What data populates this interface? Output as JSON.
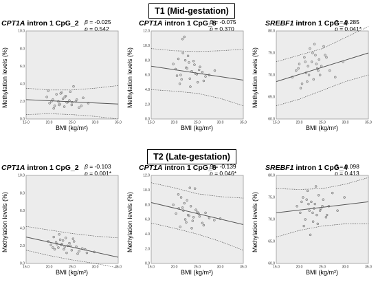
{
  "sections": [
    {
      "title": "T1  (Mid-gestation)"
    },
    {
      "title": "T2  (Late-gestation)"
    }
  ],
  "xlabel": "BMI (kg/m²)",
  "ylabel": "Methylation levels (%)",
  "stats_prefix": {
    "beta": "β",
    "p": "p"
  },
  "panels": [
    {
      "gene": "CPT1A",
      "rest": " intron 1 CpG_2",
      "beta": "= -0.025",
      "p": "= 0.542"
    },
    {
      "gene": "CPT1A",
      "rest": " intron 1 CpG_8",
      "beta": "= -0.075",
      "p": "= 0.370"
    },
    {
      "gene": "SREBF1",
      "rest": " intron 1 CpG_4",
      "beta": "= 0.285",
      "p": "= 0.041*"
    },
    {
      "gene": "CPT1A",
      "rest": " intron 1 CpG_2",
      "beta": "= -0.103",
      "p": "= 0.001*"
    },
    {
      "gene": "CPT1A",
      "rest": " intron 1 CpG_8",
      "beta": "= -0.139",
      "p": "= 0.046*"
    },
    {
      "gene": "SREBF1",
      "rest": " intron 1 CpG_4",
      "beta": "= 0.098",
      "p": "= 0.413"
    }
  ],
  "chart_data": [
    {
      "type": "scatter",
      "title": "CPT1A intron 1 CpG_2 (T1)",
      "xlabel": "BMI (kg/m²)",
      "ylabel": "Methylation levels (%)",
      "xlim": [
        15,
        35
      ],
      "ylim": [
        0,
        10
      ],
      "xticks": [
        "15.0",
        "20.0",
        "25.0",
        "30.0",
        "35.0"
      ],
      "yticks": [
        "0.0",
        "2.0",
        "4.0",
        "6.0",
        "8.0",
        "10.0"
      ],
      "fit": {
        "x": [
          15,
          35
        ],
        "y": [
          2.2,
          1.7
        ]
      },
      "ci_upper": {
        "x": [
          15,
          20,
          25,
          30,
          35
        ],
        "y": [
          3.5,
          3.3,
          3.3,
          3.5,
          3.8
        ]
      },
      "ci_lower": {
        "x": [
          15,
          20,
          25,
          30,
          35
        ],
        "y": [
          0.5,
          0.6,
          0.5,
          0.3,
          0.0
        ]
      },
      "points": {
        "x": [
          19.5,
          20.1,
          20.8,
          21.2,
          21.6,
          22.0,
          22.3,
          22.7,
          23.0,
          23.3,
          23.6,
          24.0,
          24.4,
          24.9,
          25.3,
          25.8,
          26.5,
          27.4,
          28.5,
          19.8,
          21.0,
          22.5,
          23.8,
          24.6,
          26.0,
          20.5,
          22.2,
          23.4,
          25.0,
          27.0
        ],
        "y": [
          2.5,
          1.8,
          2.2,
          1.5,
          2.8,
          2.0,
          1.7,
          3.0,
          2.3,
          1.4,
          2.6,
          1.9,
          2.1,
          1.6,
          3.7,
          2.0,
          1.3,
          2.4,
          1.8,
          3.2,
          1.2,
          2.9,
          1.9,
          3.1,
          2.2,
          2.0,
          1.6,
          2.5,
          1.9,
          1.5
        ]
      }
    },
    {
      "type": "scatter",
      "title": "CPT1A intron 1 CpG_8 (T1)",
      "xlabel": "BMI (kg/m²)",
      "ylabel": "Methylation levels (%)",
      "xlim": [
        15,
        35
      ],
      "ylim": [
        0,
        12
      ],
      "xticks": [
        "15.0",
        "20.0",
        "25.0",
        "30.0",
        "35.0"
      ],
      "yticks": [
        "0.0",
        "2.0",
        "4.0",
        "6.0",
        "8.0",
        "10.0",
        "12.0"
      ],
      "fit": {
        "x": [
          15,
          35
        ],
        "y": [
          7.2,
          5.3
        ]
      },
      "ci_upper": {
        "x": [
          15,
          20,
          25,
          30,
          35
        ],
        "y": [
          9.6,
          9.3,
          9.2,
          9.3,
          9.5
        ]
      },
      "ci_lower": {
        "x": [
          15,
          20,
          25,
          30,
          35
        ],
        "y": [
          4.0,
          3.8,
          3.5,
          2.8,
          1.8
        ]
      },
      "points": {
        "x": [
          19.8,
          20.3,
          20.9,
          21.4,
          21.8,
          22.2,
          22.6,
          23.0,
          23.4,
          23.8,
          24.2,
          24.6,
          25.1,
          25.6,
          26.1,
          26.8,
          27.6,
          28.8,
          21.2,
          21.9,
          22.8,
          23.5,
          24.4,
          20.6,
          22.4,
          25.4,
          21.6,
          23.2,
          24.9,
          26.4
        ],
        "y": [
          7.5,
          6.8,
          8.2,
          6.0,
          10.9,
          11.2,
          7.0,
          8.6,
          5.5,
          6.5,
          7.9,
          6.2,
          5.0,
          7.1,
          6.4,
          5.8,
          6.0,
          6.6,
          4.8,
          9.0,
          6.9,
          4.4,
          7.4,
          5.9,
          8.0,
          6.7,
          5.4,
          7.7,
          6.1,
          5.2
        ]
      }
    },
    {
      "type": "scatter",
      "title": "SREBF1 intron 1 CpG_4 (T1)",
      "xlabel": "BMI (kg/m²)",
      "ylabel": "Methylation levels (%)",
      "xlim": [
        15,
        35
      ],
      "ylim": [
        60,
        80
      ],
      "xticks": [
        "15.0",
        "20.0",
        "25.0",
        "30.0",
        "35.0"
      ],
      "yticks": [
        "60.0",
        "65.0",
        "70.0",
        "75.0",
        "80.0"
      ],
      "fit": {
        "x": [
          15,
          35
        ],
        "y": [
          68.5,
          75.0
        ]
      },
      "ci_upper": {
        "x": [
          15,
          20,
          25,
          30,
          35
        ],
        "y": [
          73.0,
          74.5,
          76.0,
          78.5,
          81.0
        ]
      },
      "ci_lower": {
        "x": [
          15,
          20,
          25,
          30,
          35
        ],
        "y": [
          63.0,
          64.5,
          66.5,
          68.5,
          70.0
        ]
      },
      "points": {
        "x": [
          18.5,
          19.3,
          20.0,
          20.6,
          21.1,
          21.5,
          21.9,
          22.3,
          22.7,
          23.1,
          23.5,
          23.9,
          24.3,
          24.8,
          25.3,
          25.9,
          26.6,
          27.8,
          29.5,
          20.3,
          21.3,
          22.1,
          22.9,
          23.7,
          24.5,
          19.8,
          21.7,
          23.3,
          24.1,
          25.6
        ],
        "y": [
          69.5,
          71.0,
          72.5,
          68.0,
          74.0,
          70.5,
          72.0,
          76.0,
          73.0,
          69.0,
          74.5,
          71.5,
          73.5,
          72.0,
          76.5,
          74.0,
          71.0,
          69.5,
          73.0,
          67.0,
          73.0,
          70.0,
          75.0,
          72.5,
          70.0,
          71.5,
          68.5,
          77.0,
          71.0,
          74.5
        ]
      }
    },
    {
      "type": "scatter",
      "title": "CPT1A intron 1 CpG_2 (T2)",
      "xlabel": "BMI (kg/m²)",
      "ylabel": "Methylation levels (%)",
      "xlim": [
        15,
        35
      ],
      "ylim": [
        0,
        10
      ],
      "xticks": [
        "15.0",
        "20.0",
        "25.0",
        "30.0",
        "35.0"
      ],
      "yticks": [
        "0.0",
        "2.0",
        "4.0",
        "6.0",
        "8.0",
        "10.0"
      ],
      "fit": {
        "x": [
          15,
          35
        ],
        "y": [
          3.0,
          0.7
        ]
      },
      "ci_upper": {
        "x": [
          15,
          20,
          25,
          30,
          35
        ],
        "y": [
          4.2,
          3.8,
          3.4,
          3.1,
          2.9
        ]
      },
      "ci_lower": {
        "x": [
          15,
          20,
          25,
          30,
          35
        ],
        "y": [
          1.5,
          0.9,
          0.4,
          0.0,
          -0.5
        ]
      },
      "points": {
        "x": [
          19.8,
          20.4,
          21.0,
          21.5,
          22.0,
          22.4,
          22.8,
          23.2,
          23.6,
          24.0,
          24.4,
          24.9,
          25.4,
          25.9,
          26.5,
          27.2,
          28.2,
          29.8,
          21.2,
          22.2,
          23.0,
          23.8,
          24.6,
          20.8,
          22.6,
          25.2,
          26.2,
          27.8,
          21.7,
          23.4
        ],
        "y": [
          2.5,
          2.1,
          3.0,
          2.4,
          1.8,
          2.7,
          2.2,
          1.6,
          2.9,
          2.0,
          2.3,
          1.5,
          2.5,
          1.9,
          1.4,
          1.7,
          1.2,
          1.3,
          1.6,
          3.3,
          2.6,
          1.2,
          2.0,
          1.8,
          2.1,
          2.8,
          1.1,
          1.6,
          2.2,
          1.9
        ]
      }
    },
    {
      "type": "scatter",
      "title": "CPT1A intron 1 CpG_8 (T2)",
      "xlabel": "BMI (kg/m²)",
      "ylabel": "Methylation levels (%)",
      "xlim": [
        15,
        35
      ],
      "ylim": [
        0,
        12
      ],
      "xticks": [
        "15.0",
        "20.0",
        "25.0",
        "30.0",
        "35.0"
      ],
      "yticks": [
        "0.0",
        "2.0",
        "4.0",
        "6.0",
        "8.0",
        "10.0",
        "12.0"
      ],
      "fit": {
        "x": [
          15,
          35
        ],
        "y": [
          8.3,
          5.3
        ]
      },
      "ci_upper": {
        "x": [
          15,
          20,
          25,
          30,
          35
        ],
        "y": [
          11.0,
          10.3,
          9.5,
          9.1,
          8.9
        ]
      },
      "ci_lower": {
        "x": [
          15,
          20,
          25,
          30,
          35
        ],
        "y": [
          5.5,
          4.8,
          4.0,
          3.0,
          1.8
        ]
      },
      "points": {
        "x": [
          19.8,
          20.4,
          21.0,
          21.5,
          22.0,
          22.4,
          22.8,
          23.2,
          23.6,
          24.0,
          24.5,
          25.0,
          25.5,
          26.1,
          26.8,
          27.6,
          28.7,
          30.0,
          21.3,
          22.2,
          23.0,
          23.8,
          24.7,
          20.9,
          22.6,
          25.3,
          26.4,
          21.8,
          23.4,
          24.2
        ],
        "y": [
          8.0,
          6.8,
          7.5,
          9.0,
          7.2,
          6.0,
          8.6,
          6.5,
          7.8,
          5.8,
          10.2,
          7.0,
          6.4,
          5.5,
          6.9,
          6.2,
          5.9,
          6.1,
          5.0,
          8.2,
          6.6,
          4.8,
          7.3,
          9.4,
          5.6,
          6.8,
          5.2,
          7.6,
          10.3,
          6.3
        ]
      }
    },
    {
      "type": "scatter",
      "title": "SREBF1 intron 1 CpG_4 (T2)",
      "xlabel": "BMI (kg/m²)",
      "ylabel": "Methylation levels (%)",
      "xlim": [
        15,
        35
      ],
      "ylim": [
        60,
        80
      ],
      "xticks": [
        "15.0",
        "20.0",
        "25.0",
        "30.0",
        "35.0"
      ],
      "yticks": [
        "60.0",
        "65.0",
        "70.0",
        "75.0",
        "80.0"
      ],
      "fit": {
        "x": [
          15,
          35
        ],
        "y": [
          71.5,
          74.0
        ]
      },
      "ci_upper": {
        "x": [
          15,
          20,
          25,
          30,
          35
        ],
        "y": [
          77.0,
          76.8,
          77.0,
          78.0,
          79.5
        ]
      },
      "ci_lower": {
        "x": [
          15,
          20,
          25,
          30,
          35
        ],
        "y": [
          66.0,
          67.5,
          68.5,
          69.0,
          69.0
        ]
      },
      "points": {
        "x": [
          19.5,
          20.2,
          20.8,
          21.3,
          21.8,
          22.2,
          22.6,
          23.0,
          23.4,
          23.8,
          24.2,
          24.7,
          25.2,
          25.8,
          26.4,
          27.2,
          28.3,
          29.8,
          21.0,
          22.0,
          22.9,
          23.6,
          24.5,
          20.5,
          22.4,
          25.0,
          26.0,
          21.6,
          23.2,
          24.0
        ],
        "y": [
          73.0,
          71.5,
          75.0,
          70.0,
          76.5,
          72.0,
          74.0,
          69.5,
          73.5,
          71.0,
          75.5,
          72.5,
          74.5,
          70.5,
          73.0,
          76.0,
          72.0,
          75.0,
          68.5,
          73.5,
          71.5,
          77.5,
          72.0,
          74.0,
          66.5,
          73.0,
          71.0,
          74.5,
          72.5,
          69.0
        ]
      }
    }
  ]
}
